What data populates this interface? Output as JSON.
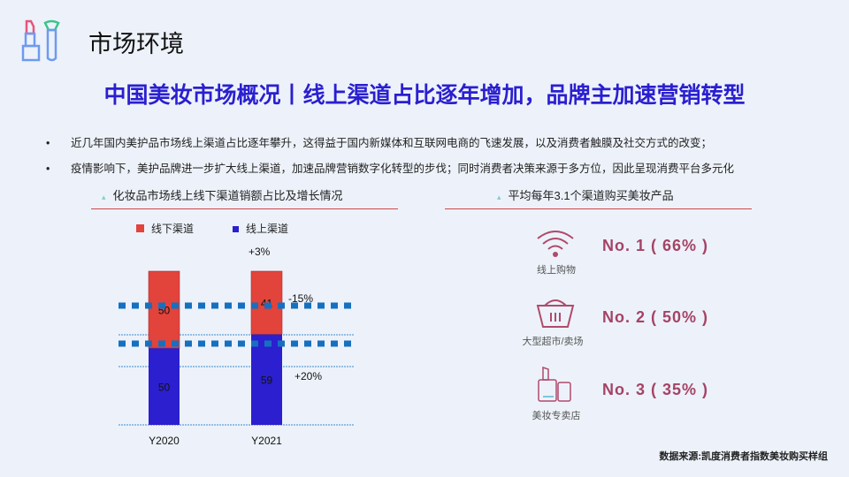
{
  "header": {
    "section_title": "市场环境",
    "logo_icon": "lipstick-brush-icon",
    "headline": "中国美妆市场概况丨线上渠道占比逐年增加，品牌主加速营销转型"
  },
  "bullets": [
    "近几年国内美护品市场线上渠道占比逐年攀升，这得益于国内新媒体和互联网电商的飞速发展，以及消费者触膜及社交方式的改变；",
    "疫情影响下，美护品牌进一步扩大线上渠道，加速品牌营销数字化转型的步伐；同时消费者决策来源于多方位，因此呈现消费平台多元化"
  ],
  "bullet_symbol": "•",
  "left_panel": {
    "title": "化妆品市场线上线下渠道销额占比及增长情况"
  },
  "chart_data": {
    "type": "bar",
    "stacked": true,
    "categories": [
      "Y2020",
      "Y2021"
    ],
    "series": [
      {
        "name": "线上渠道",
        "values": [
          50,
          59
        ],
        "color": "#2b1fcf"
      },
      {
        "name": "线下渠道",
        "values": [
          50,
          41
        ],
        "color": "#e2433b"
      }
    ],
    "legend_position": "top",
    "annotations": {
      "total_change": "+3%",
      "offline_change": "-15%",
      "online_change": "+20%"
    }
  },
  "right_panel": {
    "title": "平均每年3.1个渠道购买美妆产品",
    "items": [
      {
        "icon": "wifi-icon",
        "label": "线上购物",
        "rank": "No. 1 ( 66% )"
      },
      {
        "icon": "basket-icon",
        "label": "大型超市/卖场",
        "rank": "No. 2 ( 50% )"
      },
      {
        "icon": "cosmetics-icon",
        "label": "美妆专卖店",
        "rank": "No. 3 ( 35% )"
      }
    ]
  },
  "footer": {
    "source": "数据来源:凯度消费者指数美妆购买样组"
  }
}
